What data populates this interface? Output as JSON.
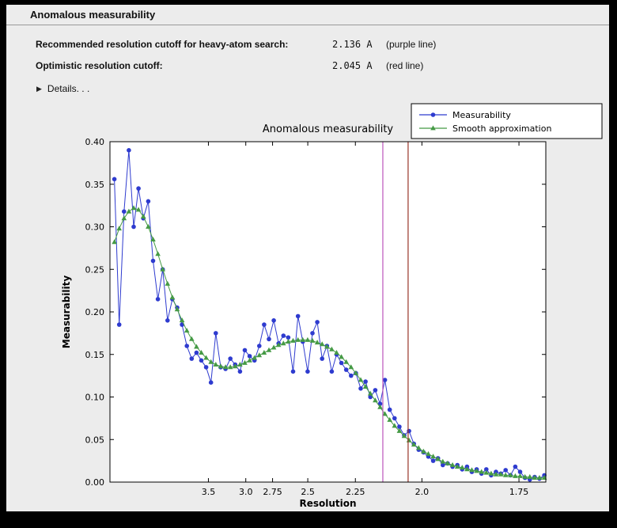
{
  "header": {
    "title": "Anomalous measurability"
  },
  "info": {
    "rows": [
      {
        "label": "Recommended resolution cutoff for heavy-atom search:",
        "value": "2.136 A",
        "note": "(purple line)"
      },
      {
        "label": "Optimistic resolution cutoff:",
        "value": "2.045 A",
        "note": "(red line)"
      }
    ],
    "details_label": "Details. . ."
  },
  "chart_data": {
    "type": "line",
    "title": "Anomalous measurability",
    "xlabel": "Resolution",
    "ylabel": "Measurability",
    "ylim": [
      0.0,
      0.4
    ],
    "y_ticks": [
      {
        "v": 0.0,
        "label": "0.00"
      },
      {
        "v": 0.05,
        "label": "0.05"
      },
      {
        "v": 0.1,
        "label": "0.10"
      },
      {
        "v": 0.15,
        "label": "0.15"
      },
      {
        "v": 0.2,
        "label": "0.20"
      },
      {
        "v": 0.25,
        "label": "0.25"
      },
      {
        "v": 0.3,
        "label": "0.30"
      },
      {
        "v": 0.35,
        "label": "0.35"
      },
      {
        "v": 0.4,
        "label": "0.40"
      }
    ],
    "x_axis": {
      "scale": "1/d^2",
      "u_min": 0.004,
      "u_max": 0.3477,
      "data_u_min": 0.0075,
      "data_u_max": 0.3465,
      "ticks": [
        {
          "d": 3.5,
          "label": "3.5"
        },
        {
          "d": 3.0,
          "label": "3.0"
        },
        {
          "d": 2.75,
          "label": "2.75"
        },
        {
          "d": 2.5,
          "label": "2.5"
        },
        {
          "d": 2.25,
          "label": "2.25"
        },
        {
          "d": 2.0,
          "label": "2.0"
        },
        {
          "d": 1.75,
          "label": "1.75"
        }
      ]
    },
    "series": [
      {
        "name": "Measurability",
        "color": "#2e3bcf",
        "marker": "circle",
        "values": [
          0.356,
          0.185,
          0.318,
          0.39,
          0.3,
          0.345,
          0.31,
          0.33,
          0.26,
          0.215,
          0.25,
          0.19,
          0.215,
          0.205,
          0.185,
          0.16,
          0.145,
          0.152,
          0.143,
          0.135,
          0.117,
          0.175,
          0.135,
          0.133,
          0.145,
          0.138,
          0.13,
          0.155,
          0.148,
          0.143,
          0.16,
          0.185,
          0.168,
          0.19,
          0.163,
          0.172,
          0.17,
          0.13,
          0.195,
          0.165,
          0.13,
          0.175,
          0.188,
          0.145,
          0.16,
          0.13,
          0.15,
          0.14,
          0.132,
          0.125,
          0.128,
          0.11,
          0.118,
          0.1,
          0.108,
          0.092,
          0.12,
          0.085,
          0.075,
          0.065,
          0.055,
          0.06,
          0.045,
          0.038,
          0.035,
          0.03,
          0.025,
          0.028,
          0.02,
          0.022,
          0.018,
          0.02,
          0.015,
          0.018,
          0.012,
          0.015,
          0.01,
          0.015,
          0.008,
          0.012,
          0.01,
          0.014,
          0.008,
          0.018,
          0.012,
          0.005,
          0.003,
          0.006,
          0.004,
          0.008
        ]
      },
      {
        "name": "Smooth approximation",
        "color": "#459a45",
        "marker": "triangle",
        "values": [
          0.282,
          0.298,
          0.31,
          0.318,
          0.322,
          0.32,
          0.312,
          0.3,
          0.285,
          0.268,
          0.25,
          0.233,
          0.217,
          0.203,
          0.19,
          0.178,
          0.168,
          0.159,
          0.152,
          0.146,
          0.141,
          0.138,
          0.136,
          0.135,
          0.135,
          0.136,
          0.138,
          0.14,
          0.143,
          0.146,
          0.149,
          0.152,
          0.155,
          0.158,
          0.161,
          0.163,
          0.165,
          0.166,
          0.167,
          0.167,
          0.167,
          0.166,
          0.164,
          0.162,
          0.159,
          0.156,
          0.152,
          0.147,
          0.141,
          0.135,
          0.128,
          0.12,
          0.112,
          0.104,
          0.096,
          0.088,
          0.08,
          0.073,
          0.066,
          0.06,
          0.054,
          0.049,
          0.044,
          0.04,
          0.036,
          0.033,
          0.03,
          0.027,
          0.024,
          0.022,
          0.02,
          0.018,
          0.017,
          0.015,
          0.014,
          0.013,
          0.012,
          0.011,
          0.01,
          0.009,
          0.009,
          0.008,
          0.008,
          0.007,
          0.007,
          0.006,
          0.006,
          0.005,
          0.005,
          0.005
        ]
      }
    ],
    "vlines": [
      {
        "d": 2.136,
        "color": "#bb55bb",
        "name": "purple line"
      },
      {
        "d": 2.045,
        "color": "#993328",
        "name": "red line"
      }
    ],
    "legend": {
      "position": "upper right",
      "entries": [
        "Measurability",
        "Smooth approximation"
      ]
    }
  }
}
